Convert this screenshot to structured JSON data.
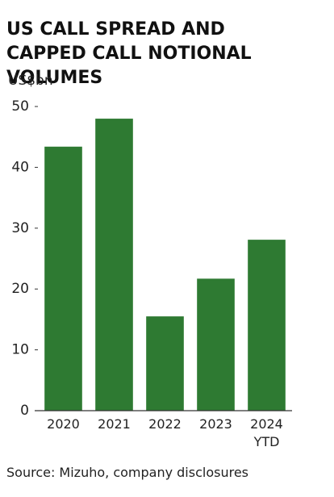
{
  "chart_data": {
    "type": "bar",
    "title": "US CALL SPREAD AND CAPPED CALL NOTIONAL VOLUMES",
    "y_label": "US$bn",
    "categories": [
      "2020",
      "2021",
      "2022",
      "2023",
      "2024 YTD"
    ],
    "values": [
      43.4,
      48,
      15.5,
      21.7,
      28.1
    ],
    "color": "#2e7a32",
    "ylim": [
      0,
      50
    ],
    "yticks": [
      0,
      10,
      20,
      30,
      40,
      50
    ],
    "grid": false,
    "source": "Source: Mizuho, company disclosures"
  }
}
